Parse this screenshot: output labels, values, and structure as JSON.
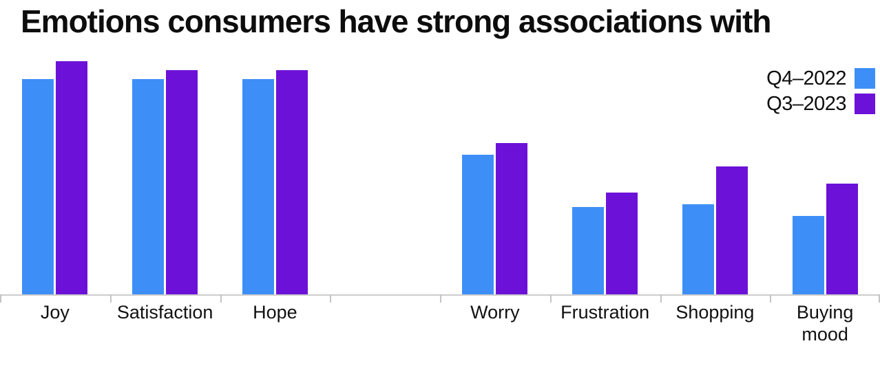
{
  "title": "Emotions consumers have strong associations with",
  "legend": {
    "items": [
      {
        "label": "Q4–2022",
        "color": "#3D8FF7"
      },
      {
        "label": "Q3–2023",
        "color": "#6C12D8"
      }
    ]
  },
  "colors": {
    "series_blue": "#3D8FF7",
    "series_purple": "#6C12D8",
    "axis_line": "#cccccc",
    "text": "#0d0d0d"
  },
  "chart_data": {
    "type": "bar",
    "title": "Emotions consumers have strong associations with",
    "categories": [
      "Joy",
      "Satisfaction",
      "Hope",
      "",
      "Worry",
      "Frustration",
      "Shopping",
      "Buying\nmood"
    ],
    "series": [
      {
        "name": "Q4–2022",
        "color": "#3D8FF7",
        "values": [
          74,
          74,
          74,
          null,
          48,
          30,
          31,
          27
        ]
      },
      {
        "name": "Q3–2023",
        "color": "#6C12D8",
        "values": [
          80,
          77,
          77,
          null,
          52,
          35,
          44,
          38
        ]
      }
    ],
    "xlabel": "",
    "ylabel": "",
    "ylim": [
      0,
      85
    ],
    "y_axis_labels_visible": false,
    "grid": false,
    "legend_position": "top-right",
    "note": "y-axis unlabeled; values estimated as percentages from bar heights; empty category is a spacer between positive and negative emotion groups"
  }
}
